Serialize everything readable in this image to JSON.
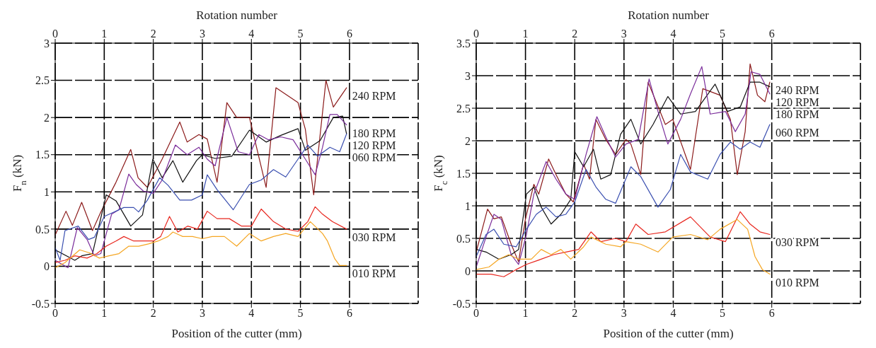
{
  "chart_data": [
    {
      "type": "line",
      "xlabel": "Position of the cutter (mm)",
      "ylabel": "F$_{n}$ (kN)",
      "x2label": "Rotation number",
      "xlim": [
        0,
        7.4
      ],
      "xticks": [
        0,
        1,
        2,
        3,
        4,
        5,
        6
      ],
      "x2lim": [
        0,
        7.4
      ],
      "x2ticks": [
        0,
        1,
        2,
        3,
        4,
        5,
        6
      ],
      "ylim": [
        -0.5,
        3
      ],
      "yticks": [
        -0.5,
        0,
        0.5,
        1,
        1.5,
        2,
        2.5,
        3
      ],
      "grid": true,
      "series": [
        {
          "name": "240 RPM",
          "color": "#8b1a1a",
          "x": [
            0,
            0.22,
            0.35,
            0.54,
            0.76,
            0.93,
            1.24,
            1.54,
            1.69,
            1.88,
            2.18,
            2.54,
            2.69,
            2.93,
            3.1,
            3.3,
            3.5,
            3.7,
            3.96,
            4.3,
            4.5,
            4.95,
            5.1,
            5.27,
            5.52,
            5.67,
            5.94
          ],
          "values": [
            0.42,
            0.74,
            0.55,
            0.86,
            0.48,
            0.73,
            1.13,
            1.57,
            1.19,
            1.06,
            1.44,
            1.94,
            1.67,
            1.77,
            1.71,
            1.13,
            2.2,
            2.0,
            2.0,
            1.06,
            2.4,
            2.2,
            1.84,
            0.96,
            2.5,
            2.14,
            2.4
          ]
        },
        {
          "name": "120 RPM",
          "color": "#111111",
          "x": [
            0,
            0.4,
            0.54,
            0.76,
            1.04,
            1.24,
            1.54,
            1.78,
            1.99,
            2.18,
            2.4,
            2.6,
            2.88,
            3.0,
            3.26,
            3.6,
            3.96,
            4.3,
            4.6,
            4.95,
            5.1,
            5.4,
            5.67,
            5.86,
            5.94
          ],
          "values": [
            0.22,
            0.08,
            0.14,
            0.17,
            0.96,
            0.88,
            0.54,
            0.69,
            1.44,
            1.19,
            1.42,
            1.13,
            1.42,
            1.5,
            1.45,
            1.48,
            1.83,
            1.67,
            1.76,
            1.85,
            1.56,
            1.69,
            2.0,
            2.02,
            1.78
          ]
        },
        {
          "name": "180 RPM",
          "color": "#7b2d9b",
          "x": [
            0,
            0.26,
            0.45,
            0.65,
            0.8,
            0.93,
            1.15,
            1.3,
            1.5,
            1.65,
            1.8,
            2.0,
            2.18,
            2.45,
            2.69,
            2.93,
            3.1,
            3.26,
            3.5,
            3.73,
            3.96,
            4.15,
            4.35,
            4.6,
            4.85,
            5.1,
            5.3,
            5.45,
            5.6,
            5.75,
            5.94
          ],
          "values": [
            0.08,
            -0.02,
            0.52,
            0.36,
            0.14,
            0.17,
            0.7,
            0.76,
            1.24,
            1.1,
            1.01,
            0.98,
            1.16,
            1.63,
            1.5,
            1.6,
            1.44,
            1.35,
            2.0,
            1.54,
            1.5,
            1.77,
            1.7,
            1.74,
            1.7,
            1.44,
            1.23,
            1.6,
            2.04,
            2.04,
            1.9
          ]
        },
        {
          "name": "060 RPM",
          "color": "#3a4fb0",
          "x": [
            0,
            0.1,
            0.2,
            0.47,
            0.68,
            0.8,
            1.0,
            1.2,
            1.4,
            1.6,
            1.7,
            1.88,
            2.13,
            2.3,
            2.54,
            2.78,
            3.0,
            3.1,
            3.3,
            3.63,
            3.96,
            4.2,
            4.45,
            4.7,
            4.95,
            5.15,
            5.35,
            5.6,
            5.8,
            5.94
          ],
          "values": [
            0.25,
            0.08,
            0.48,
            0.54,
            0.36,
            0.39,
            0.67,
            0.73,
            0.79,
            0.79,
            0.73,
            0.89,
            1.19,
            1.09,
            0.89,
            0.89,
            0.96,
            1.23,
            1.03,
            0.76,
            1.1,
            1.16,
            1.3,
            1.2,
            1.44,
            1.63,
            1.48,
            1.6,
            1.54,
            1.78
          ]
        },
        {
          "name": "030 RPM",
          "color": "#e8261e",
          "x": [
            0,
            0.2,
            0.4,
            0.65,
            0.85,
            1.04,
            1.24,
            1.4,
            1.6,
            1.8,
            2.0,
            2.15,
            2.33,
            2.5,
            2.7,
            2.9,
            3.1,
            3.3,
            3.55,
            3.8,
            4.0,
            4.2,
            4.45,
            4.7,
            4.95,
            5.15,
            5.3,
            5.45,
            5.65,
            5.94
          ],
          "values": [
            0.05,
            0.08,
            0.14,
            0.11,
            0.17,
            0.27,
            0.34,
            0.4,
            0.34,
            0.34,
            0.34,
            0.4,
            0.67,
            0.46,
            0.54,
            0.5,
            0.74,
            0.64,
            0.64,
            0.54,
            0.54,
            0.77,
            0.6,
            0.5,
            0.47,
            0.6,
            0.8,
            0.7,
            0.6,
            0.5
          ]
        },
        {
          "name": "010 RPM",
          "color": "#f5a623",
          "x": [
            0,
            0.2,
            0.5,
            0.7,
            0.9,
            1.1,
            1.3,
            1.5,
            1.7,
            1.9,
            2.1,
            2.3,
            2.4,
            2.6,
            2.8,
            3.0,
            3.2,
            3.45,
            3.7,
            3.96,
            4.2,
            4.45,
            4.7,
            4.95,
            5.2,
            5.45,
            5.55,
            5.7,
            5.8,
            5.94
          ],
          "values": [
            -0.02,
            0.05,
            0.22,
            0.18,
            0.11,
            0.14,
            0.17,
            0.27,
            0.27,
            0.3,
            0.34,
            0.4,
            0.46,
            0.4,
            0.4,
            0.37,
            0.4,
            0.4,
            0.27,
            0.44,
            0.34,
            0.4,
            0.44,
            0.4,
            0.6,
            0.44,
            0.34,
            0.1,
            0.01,
            0.01
          ]
        }
      ]
    },
    {
      "type": "line",
      "xlabel": "Position of the cutter (mm)",
      "ylabel": "F$_{c}$ (kN)",
      "x2label": "Rotation number",
      "xlim": [
        0,
        7.8
      ],
      "xticks": [
        0,
        1,
        2,
        3,
        4,
        5,
        6
      ],
      "x2lim": [
        0,
        7.8
      ],
      "x2ticks": [
        0,
        1,
        2,
        3,
        4,
        5,
        6
      ],
      "ylim": [
        -0.5,
        3.5
      ],
      "yticks": [
        -0.5,
        0,
        0.5,
        1,
        1.5,
        2,
        2.5,
        3,
        3.5
      ],
      "grid": true,
      "series": [
        {
          "name": "240 RPM",
          "color": "#8b1a1a",
          "x": [
            0,
            0.23,
            0.36,
            0.51,
            0.71,
            0.86,
            1.0,
            1.17,
            1.27,
            1.47,
            1.62,
            1.82,
            1.97,
            2.18,
            2.3,
            2.43,
            2.63,
            2.83,
            3.04,
            3.14,
            3.34,
            3.49,
            3.84,
            3.99,
            4.35,
            4.6,
            4.95,
            5.16,
            5.3,
            5.46,
            5.56,
            5.71,
            5.86,
            5.96
          ],
          "values": [
            0.29,
            0.95,
            0.8,
            0.83,
            0.41,
            0.14,
            0.8,
            1.33,
            1.18,
            1.72,
            1.48,
            1.18,
            1.06,
            1.64,
            1.41,
            2.33,
            2.02,
            1.79,
            2.02,
            1.95,
            1.48,
            2.9,
            2.25,
            2.33,
            1.56,
            2.8,
            2.7,
            2.33,
            1.48,
            2.14,
            3.18,
            2.7,
            2.6,
            2.9
          ]
        },
        {
          "name": "120 RPM",
          "color": "#111111",
          "x": [
            0,
            0.2,
            0.46,
            0.71,
            0.86,
            1.02,
            1.17,
            1.32,
            1.52,
            1.72,
            1.92,
            2.0,
            2.18,
            2.38,
            2.53,
            2.73,
            2.93,
            3.14,
            3.34,
            3.59,
            3.89,
            4.15,
            4.45,
            4.85,
            5.1,
            5.36,
            5.56,
            5.76,
            5.96
          ],
          "values": [
            0.33,
            0.29,
            0.18,
            0.25,
            0.33,
            1.18,
            1.29,
            0.98,
            0.72,
            0.87,
            1.1,
            1.83,
            1.6,
            1.87,
            1.41,
            1.48,
            2.1,
            2.33,
            1.95,
            2.25,
            2.68,
            2.41,
            2.45,
            2.87,
            2.45,
            2.52,
            2.9,
            2.9,
            2.83
          ]
        },
        {
          "name": "180 RPM",
          "color": "#7b2d9b",
          "x": [
            0,
            0.2,
            0.36,
            0.51,
            0.71,
            0.86,
            1.02,
            1.17,
            1.42,
            1.62,
            1.82,
            2.0,
            2.23,
            2.45,
            2.63,
            2.83,
            3.04,
            3.29,
            3.51,
            3.69,
            3.89,
            4.15,
            4.35,
            4.58,
            4.75,
            5.06,
            5.26,
            5.46,
            5.58,
            5.76,
            5.96
          ],
          "values": [
            0.06,
            0.52,
            0.87,
            0.79,
            0.25,
            0.1,
            0.56,
            1.18,
            1.68,
            1.41,
            1.18,
            1.1,
            1.79,
            2.37,
            2.06,
            1.75,
            1.95,
            2.02,
            2.95,
            2.45,
            1.95,
            2.33,
            2.72,
            3.14,
            2.41,
            2.45,
            2.14,
            2.41,
            3.06,
            3.02,
            2.72
          ]
        },
        {
          "name": "060 RPM",
          "color": "#3a4fb0",
          "x": [
            0,
            0.2,
            0.36,
            0.56,
            0.81,
            1.02,
            1.22,
            1.42,
            1.62,
            1.82,
            2.0,
            2.23,
            2.43,
            2.63,
            2.83,
            3.14,
            3.34,
            3.69,
            3.94,
            4.15,
            4.35,
            4.7,
            4.95,
            5.16,
            5.36,
            5.56,
            5.76,
            5.96
          ],
          "values": [
            0.22,
            0.56,
            0.64,
            0.41,
            0.37,
            0.64,
            0.87,
            0.98,
            0.83,
            0.87,
            1.06,
            1.56,
            1.29,
            1.1,
            1.04,
            1.6,
            1.45,
            0.98,
            1.25,
            1.79,
            1.52,
            1.41,
            1.79,
            1.98,
            1.87,
            1.98,
            1.9,
            2.25
          ]
        },
        {
          "name": "030 RPM",
          "color": "#e8261e",
          "x": [
            0,
            0.3,
            0.56,
            0.81,
            1.02,
            1.32,
            1.57,
            1.82,
            2.08,
            2.33,
            2.53,
            2.83,
            3.04,
            3.24,
            3.49,
            3.84,
            4.35,
            4.75,
            5.06,
            5.36,
            5.56,
            5.76,
            5.96
          ],
          "values": [
            -0.05,
            -0.05,
            -0.09,
            0.02,
            0.1,
            0.18,
            0.25,
            0.29,
            0.33,
            0.6,
            0.45,
            0.5,
            0.45,
            0.72,
            0.56,
            0.6,
            0.83,
            0.52,
            0.45,
            0.91,
            0.72,
            0.6,
            0.56
          ]
        },
        {
          "name": "010 RPM",
          "color": "#f5a623",
          "x": [
            0,
            0.26,
            0.46,
            0.66,
            0.86,
            1.12,
            1.32,
            1.52,
            1.72,
            1.92,
            2.18,
            2.33,
            2.63,
            2.93,
            3.04,
            3.34,
            3.69,
            3.99,
            4.35,
            4.7,
            4.95,
            5.3,
            5.51,
            5.66,
            5.81,
            5.96
          ],
          "values": [
            0.02,
            0.06,
            0.18,
            0.25,
            0.18,
            0.18,
            0.33,
            0.25,
            0.33,
            0.18,
            0.37,
            0.52,
            0.41,
            0.37,
            0.45,
            0.41,
            0.29,
            0.52,
            0.56,
            0.48,
            0.64,
            0.79,
            0.64,
            0.22,
            0.02,
            -0.05
          ]
        }
      ]
    }
  ]
}
